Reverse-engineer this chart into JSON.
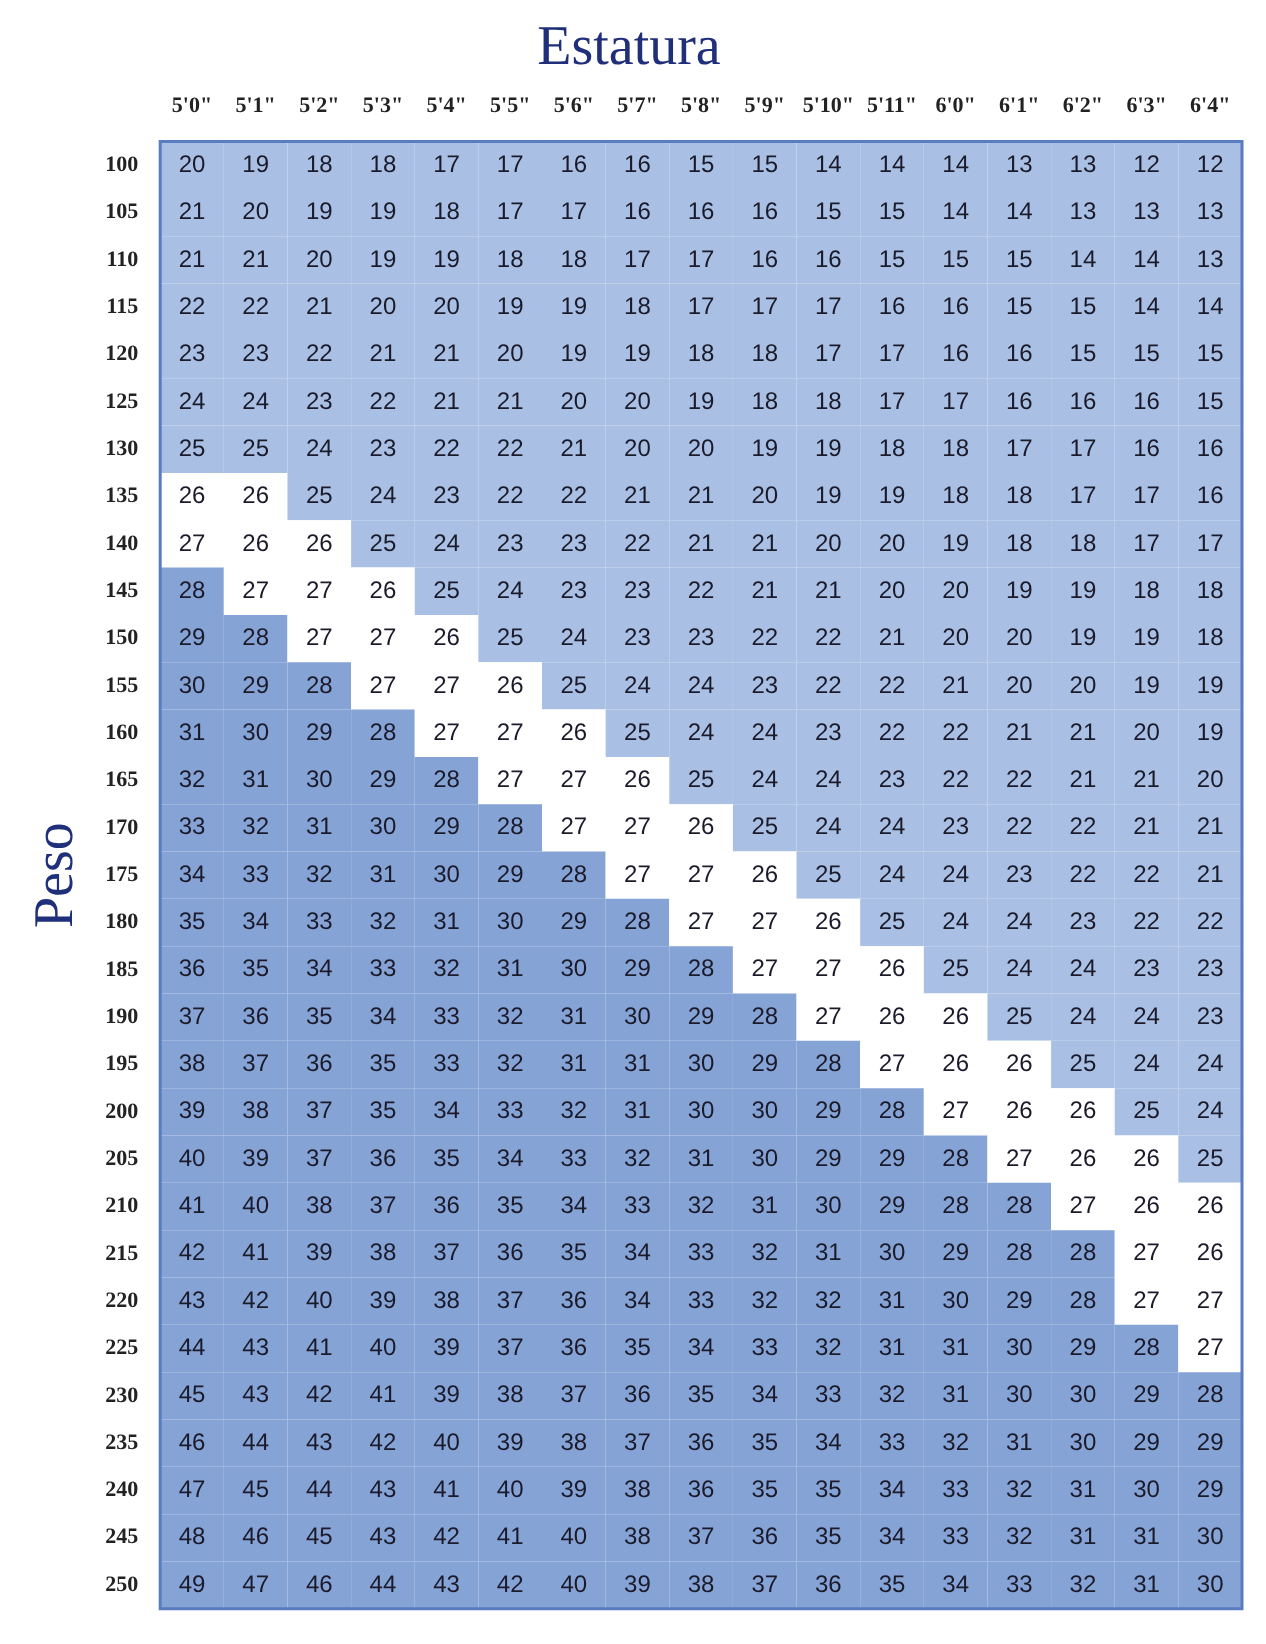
{
  "chart_data": {
    "type": "heatmap",
    "title": "Estatura",
    "ylabel": "Peso",
    "categories": [
      "5'0\"",
      "5'1\"",
      "5'2\"",
      "5'3\"",
      "5'4\"",
      "5'5\"",
      "5'6\"",
      "5'7\"",
      "5'8\"",
      "5'9\"",
      "5'10\"",
      "5'11\"",
      "6'0\"",
      "6'1\"",
      "6'2\"",
      "6'3\"",
      "6'4\""
    ],
    "y_categories": [
      "100",
      "105",
      "110",
      "115",
      "120",
      "125",
      "130",
      "135",
      "140",
      "145",
      "150",
      "155",
      "160",
      "165",
      "170",
      "175",
      "180",
      "185",
      "190",
      "195",
      "200",
      "205",
      "210",
      "215",
      "220",
      "225",
      "230",
      "235",
      "240",
      "245",
      "250"
    ],
    "cells": [
      [
        20,
        19,
        18,
        18,
        17,
        17,
        16,
        16,
        15,
        15,
        14,
        14,
        14,
        13,
        13,
        12,
        12
      ],
      [
        21,
        20,
        19,
        19,
        18,
        17,
        17,
        16,
        16,
        16,
        15,
        15,
        14,
        14,
        13,
        13,
        13
      ],
      [
        21,
        21,
        20,
        19,
        19,
        18,
        18,
        17,
        17,
        16,
        16,
        15,
        15,
        15,
        14,
        14,
        13
      ],
      [
        22,
        22,
        21,
        20,
        20,
        19,
        19,
        18,
        17,
        17,
        17,
        16,
        16,
        15,
        15,
        14,
        14
      ],
      [
        23,
        23,
        22,
        21,
        21,
        20,
        19,
        19,
        18,
        18,
        17,
        17,
        16,
        16,
        15,
        15,
        15
      ],
      [
        24,
        24,
        23,
        22,
        21,
        21,
        20,
        20,
        19,
        18,
        18,
        17,
        17,
        16,
        16,
        16,
        15
      ],
      [
        25,
        25,
        24,
        23,
        22,
        22,
        21,
        20,
        20,
        19,
        19,
        18,
        18,
        17,
        17,
        16,
        16
      ],
      [
        26,
        26,
        25,
        24,
        23,
        22,
        22,
        21,
        21,
        20,
        19,
        19,
        18,
        18,
        17,
        17,
        16
      ],
      [
        27,
        26,
        26,
        25,
        24,
        23,
        23,
        22,
        21,
        21,
        20,
        20,
        19,
        18,
        18,
        17,
        17
      ],
      [
        28,
        27,
        27,
        26,
        25,
        24,
        23,
        23,
        22,
        21,
        21,
        20,
        20,
        19,
        19,
        18,
        18
      ],
      [
        29,
        28,
        27,
        27,
        26,
        25,
        24,
        23,
        23,
        22,
        22,
        21,
        20,
        20,
        19,
        19,
        18
      ],
      [
        30,
        29,
        28,
        27,
        27,
        26,
        25,
        24,
        24,
        23,
        22,
        22,
        21,
        20,
        20,
        19,
        19
      ],
      [
        31,
        30,
        29,
        28,
        27,
        27,
        26,
        25,
        24,
        24,
        23,
        22,
        22,
        21,
        21,
        20,
        19
      ],
      [
        32,
        31,
        30,
        29,
        28,
        27,
        27,
        26,
        25,
        24,
        24,
        23,
        22,
        22,
        21,
        21,
        20
      ],
      [
        33,
        32,
        31,
        30,
        29,
        28,
        27,
        27,
        26,
        25,
        24,
        24,
        23,
        22,
        22,
        21,
        21
      ],
      [
        34,
        33,
        32,
        31,
        30,
        29,
        28,
        27,
        27,
        26,
        25,
        24,
        24,
        23,
        22,
        22,
        21
      ],
      [
        35,
        34,
        33,
        32,
        31,
        30,
        29,
        28,
        27,
        27,
        26,
        25,
        24,
        24,
        23,
        22,
        22
      ],
      [
        36,
        35,
        34,
        33,
        32,
        31,
        30,
        29,
        28,
        27,
        27,
        26,
        25,
        24,
        24,
        23,
        23
      ],
      [
        37,
        36,
        35,
        34,
        33,
        32,
        31,
        30,
        29,
        28,
        27,
        26,
        26,
        25,
        24,
        24,
        23
      ],
      [
        38,
        37,
        36,
        35,
        33,
        32,
        31,
        31,
        30,
        29,
        28,
        27,
        26,
        26,
        25,
        24,
        24
      ],
      [
        39,
        38,
        37,
        35,
        34,
        33,
        32,
        31,
        30,
        30,
        29,
        28,
        27,
        26,
        26,
        25,
        24
      ],
      [
        40,
        39,
        37,
        36,
        35,
        34,
        33,
        32,
        31,
        30,
        29,
        29,
        28,
        27,
        26,
        26,
        25
      ],
      [
        41,
        40,
        38,
        37,
        36,
        35,
        34,
        33,
        32,
        31,
        30,
        29,
        28,
        28,
        27,
        26,
        26
      ],
      [
        42,
        41,
        39,
        38,
        37,
        36,
        35,
        34,
        33,
        32,
        31,
        30,
        29,
        28,
        28,
        27,
        26
      ],
      [
        43,
        42,
        40,
        39,
        38,
        37,
        36,
        34,
        33,
        32,
        32,
        31,
        30,
        29,
        28,
        27,
        27
      ],
      [
        44,
        43,
        41,
        40,
        39,
        37,
        36,
        35,
        34,
        33,
        32,
        31,
        31,
        30,
        29,
        28,
        27
      ],
      [
        45,
        43,
        42,
        41,
        39,
        38,
        37,
        36,
        35,
        34,
        33,
        32,
        31,
        30,
        30,
        29,
        28
      ],
      [
        46,
        44,
        43,
        42,
        40,
        39,
        38,
        37,
        36,
        35,
        34,
        33,
        32,
        31,
        30,
        29,
        29
      ],
      [
        47,
        45,
        44,
        43,
        41,
        40,
        39,
        38,
        36,
        35,
        35,
        34,
        33,
        32,
        31,
        30,
        29
      ],
      [
        48,
        46,
        45,
        43,
        42,
        41,
        40,
        38,
        37,
        36,
        35,
        34,
        33,
        32,
        31,
        31,
        30
      ],
      [
        49,
        47,
        46,
        44,
        43,
        42,
        40,
        39,
        38,
        37,
        36,
        35,
        34,
        33,
        32,
        31,
        30
      ]
    ],
    "data_labels": true,
    "colors": [
      [
        "#a9c0e4",
        "#a9c0e4",
        "#a9c0e4",
        "#a9c0e4",
        "#a9c0e4",
        "#a9c0e4",
        "#a9c0e4",
        "#a9c0e4",
        "#a9c0e4",
        "#a9c0e4",
        "#a9c0e4",
        "#a9c0e4",
        "#a9c0e4",
        "#a9c0e4",
        "#a9c0e4",
        "#a9c0e4",
        "#a9c0e4"
      ],
      [
        "#a9c0e4",
        "#a9c0e4",
        "#a9c0e4",
        "#a9c0e4",
        "#a9c0e4",
        "#a9c0e4",
        "#a9c0e4",
        "#a9c0e4",
        "#a9c0e4",
        "#a9c0e4",
        "#a9c0e4",
        "#a9c0e4",
        "#a9c0e4",
        "#a9c0e4",
        "#a9c0e4",
        "#a9c0e4",
        "#a9c0e4"
      ],
      [
        "#a9c0e4",
        "#a9c0e4",
        "#a9c0e4",
        "#a9c0e4",
        "#a9c0e4",
        "#a9c0e4",
        "#a9c0e4",
        "#a9c0e4",
        "#a9c0e4",
        "#a9c0e4",
        "#a9c0e4",
        "#a9c0e4",
        "#a9c0e4",
        "#a9c0e4",
        "#a9c0e4",
        "#a9c0e4",
        "#a9c0e4"
      ],
      [
        "#a9c0e4",
        "#a9c0e4",
        "#a9c0e4",
        "#a9c0e4",
        "#a9c0e4",
        "#a9c0e4",
        "#a9c0e4",
        "#a9c0e4",
        "#a9c0e4",
        "#a9c0e4",
        "#a9c0e4",
        "#a9c0e4",
        "#a9c0e4",
        "#a9c0e4",
        "#a9c0e4",
        "#a9c0e4",
        "#a9c0e4"
      ],
      [
        "#a9c0e4",
        "#a9c0e4",
        "#a9c0e4",
        "#a9c0e4",
        "#a9c0e4",
        "#a9c0e4",
        "#a9c0e4",
        "#a9c0e4",
        "#a9c0e4",
        "#a9c0e4",
        "#a9c0e4",
        "#a9c0e4",
        "#a9c0e4",
        "#a9c0e4",
        "#a9c0e4",
        "#a9c0e4",
        "#a9c0e4"
      ],
      [
        "#a9c0e4",
        "#a9c0e4",
        "#a9c0e4",
        "#a9c0e4",
        "#a9c0e4",
        "#a9c0e4",
        "#a9c0e4",
        "#a9c0e4",
        "#a9c0e4",
        "#a9c0e4",
        "#a9c0e4",
        "#a9c0e4",
        "#a9c0e4",
        "#a9c0e4",
        "#a9c0e4",
        "#a9c0e4",
        "#a9c0e4"
      ],
      [
        "#a9c0e4",
        "#a9c0e4",
        "#a9c0e4",
        "#a9c0e4",
        "#a9c0e4",
        "#a9c0e4",
        "#a9c0e4",
        "#a9c0e4",
        "#a9c0e4",
        "#a9c0e4",
        "#a9c0e4",
        "#a9c0e4",
        "#a9c0e4",
        "#a9c0e4",
        "#a9c0e4",
        "#a9c0e4",
        "#a9c0e4"
      ],
      [
        "#ffffff",
        "#ffffff",
        "#a9c0e4",
        "#a9c0e4",
        "#a9c0e4",
        "#a9c0e4",
        "#a9c0e4",
        "#a9c0e4",
        "#a9c0e4",
        "#a9c0e4",
        "#a9c0e4",
        "#a9c0e4",
        "#a9c0e4",
        "#a9c0e4",
        "#a9c0e4",
        "#a9c0e4",
        "#a9c0e4"
      ],
      [
        "#ffffff",
        "#ffffff",
        "#ffffff",
        "#a9c0e4",
        "#a9c0e4",
        "#a9c0e4",
        "#a9c0e4",
        "#a9c0e4",
        "#a9c0e4",
        "#a9c0e4",
        "#a9c0e4",
        "#a9c0e4",
        "#a9c0e4",
        "#a9c0e4",
        "#a9c0e4",
        "#a9c0e4",
        "#a9c0e4"
      ],
      [
        "#86a3d6",
        "#ffffff",
        "#ffffff",
        "#ffffff",
        "#a9c0e4",
        "#a9c0e4",
        "#a9c0e4",
        "#a9c0e4",
        "#a9c0e4",
        "#a9c0e4",
        "#a9c0e4",
        "#a9c0e4",
        "#a9c0e4",
        "#a9c0e4",
        "#a9c0e4",
        "#a9c0e4",
        "#a9c0e4"
      ],
      [
        "#86a3d6",
        "#86a3d6",
        "#ffffff",
        "#ffffff",
        "#ffffff",
        "#a9c0e4",
        "#a9c0e4",
        "#a9c0e4",
        "#a9c0e4",
        "#a9c0e4",
        "#a9c0e4",
        "#a9c0e4",
        "#a9c0e4",
        "#a9c0e4",
        "#a9c0e4",
        "#a9c0e4",
        "#a9c0e4"
      ],
      [
        "#86a3d6",
        "#86a3d6",
        "#86a3d6",
        "#ffffff",
        "#ffffff",
        "#ffffff",
        "#a9c0e4",
        "#a9c0e4",
        "#a9c0e4",
        "#a9c0e4",
        "#a9c0e4",
        "#a9c0e4",
        "#a9c0e4",
        "#a9c0e4",
        "#a9c0e4",
        "#a9c0e4",
        "#a9c0e4"
      ],
      [
        "#86a3d6",
        "#86a3d6",
        "#86a3d6",
        "#86a3d6",
        "#ffffff",
        "#ffffff",
        "#ffffff",
        "#a9c0e4",
        "#a9c0e4",
        "#a9c0e4",
        "#a9c0e4",
        "#a9c0e4",
        "#a9c0e4",
        "#a9c0e4",
        "#a9c0e4",
        "#a9c0e4",
        "#a9c0e4"
      ],
      [
        "#86a3d6",
        "#86a3d6",
        "#86a3d6",
        "#86a3d6",
        "#86a3d6",
        "#ffffff",
        "#ffffff",
        "#ffffff",
        "#a9c0e4",
        "#a9c0e4",
        "#a9c0e4",
        "#a9c0e4",
        "#a9c0e4",
        "#a9c0e4",
        "#a9c0e4",
        "#a9c0e4",
        "#a9c0e4"
      ],
      [
        "#86a3d6",
        "#86a3d6",
        "#86a3d6",
        "#86a3d6",
        "#86a3d6",
        "#86a3d6",
        "#ffffff",
        "#ffffff",
        "#ffffff",
        "#a9c0e4",
        "#a9c0e4",
        "#a9c0e4",
        "#a9c0e4",
        "#a9c0e4",
        "#a9c0e4",
        "#a9c0e4",
        "#a9c0e4"
      ],
      [
        "#86a3d6",
        "#86a3d6",
        "#86a3d6",
        "#86a3d6",
        "#86a3d6",
        "#86a3d6",
        "#86a3d6",
        "#ffffff",
        "#ffffff",
        "#ffffff",
        "#a9c0e4",
        "#a9c0e4",
        "#a9c0e4",
        "#a9c0e4",
        "#a9c0e4",
        "#a9c0e4",
        "#a9c0e4"
      ],
      [
        "#86a3d6",
        "#86a3d6",
        "#86a3d6",
        "#86a3d6",
        "#86a3d6",
        "#86a3d6",
        "#86a3d6",
        "#86a3d6",
        "#ffffff",
        "#ffffff",
        "#ffffff",
        "#a9c0e4",
        "#a9c0e4",
        "#a9c0e4",
        "#a9c0e4",
        "#a9c0e4",
        "#a9c0e4"
      ],
      [
        "#86a3d6",
        "#86a3d6",
        "#86a3d6",
        "#86a3d6",
        "#86a3d6",
        "#86a3d6",
        "#86a3d6",
        "#86a3d6",
        "#86a3d6",
        "#ffffff",
        "#ffffff",
        "#ffffff",
        "#a9c0e4",
        "#a9c0e4",
        "#a9c0e4",
        "#a9c0e4",
        "#a9c0e4"
      ],
      [
        "#86a3d6",
        "#86a3d6",
        "#86a3d6",
        "#86a3d6",
        "#86a3d6",
        "#86a3d6",
        "#86a3d6",
        "#86a3d6",
        "#86a3d6",
        "#86a3d6",
        "#ffffff",
        "#ffffff",
        "#ffffff",
        "#a9c0e4",
        "#a9c0e4",
        "#a9c0e4",
        "#a9c0e4"
      ],
      [
        "#86a3d6",
        "#86a3d6",
        "#86a3d6",
        "#86a3d6",
        "#86a3d6",
        "#86a3d6",
        "#86a3d6",
        "#86a3d6",
        "#86a3d6",
        "#86a3d6",
        "#86a3d6",
        "#ffffff",
        "#ffffff",
        "#ffffff",
        "#a9c0e4",
        "#a9c0e4",
        "#a9c0e4"
      ],
      [
        "#86a3d6",
        "#86a3d6",
        "#86a3d6",
        "#86a3d6",
        "#86a3d6",
        "#86a3d6",
        "#86a3d6",
        "#86a3d6",
        "#86a3d6",
        "#86a3d6",
        "#86a3d6",
        "#86a3d6",
        "#ffffff",
        "#ffffff",
        "#ffffff",
        "#a9c0e4",
        "#a9c0e4"
      ],
      [
        "#86a3d6",
        "#86a3d6",
        "#86a3d6",
        "#86a3d6",
        "#86a3d6",
        "#86a3d6",
        "#86a3d6",
        "#86a3d6",
        "#86a3d6",
        "#86a3d6",
        "#86a3d6",
        "#86a3d6",
        "#86a3d6",
        "#ffffff",
        "#ffffff",
        "#ffffff",
        "#a9c0e4"
      ],
      [
        "#86a3d6",
        "#86a3d6",
        "#86a3d6",
        "#86a3d6",
        "#86a3d6",
        "#86a3d6",
        "#86a3d6",
        "#86a3d6",
        "#86a3d6",
        "#86a3d6",
        "#86a3d6",
        "#86a3d6",
        "#86a3d6",
        "#86a3d6",
        "#ffffff",
        "#ffffff",
        "#ffffff"
      ],
      [
        "#86a3d6",
        "#86a3d6",
        "#86a3d6",
        "#86a3d6",
        "#86a3d6",
        "#86a3d6",
        "#86a3d6",
        "#86a3d6",
        "#86a3d6",
        "#86a3d6",
        "#86a3d6",
        "#86a3d6",
        "#86a3d6",
        "#86a3d6",
        "#86a3d6",
        "#ffffff",
        "#ffffff"
      ],
      [
        "#86a3d6",
        "#86a3d6",
        "#86a3d6",
        "#86a3d6",
        "#86a3d6",
        "#86a3d6",
        "#86a3d6",
        "#86a3d6",
        "#86a3d6",
        "#86a3d6",
        "#86a3d6",
        "#86a3d6",
        "#86a3d6",
        "#86a3d6",
        "#86a3d6",
        "#ffffff",
        "#ffffff"
      ],
      [
        "#86a3d6",
        "#86a3d6",
        "#86a3d6",
        "#86a3d6",
        "#86a3d6",
        "#86a3d6",
        "#86a3d6",
        "#86a3d6",
        "#86a3d6",
        "#86a3d6",
        "#86a3d6",
        "#86a3d6",
        "#86a3d6",
        "#86a3d6",
        "#86a3d6",
        "#86a3d6",
        "#ffffff"
      ],
      [
        "#86a3d6",
        "#86a3d6",
        "#86a3d6",
        "#86a3d6",
        "#86a3d6",
        "#86a3d6",
        "#86a3d6",
        "#86a3d6",
        "#86a3d6",
        "#86a3d6",
        "#86a3d6",
        "#86a3d6",
        "#86a3d6",
        "#86a3d6",
        "#86a3d6",
        "#86a3d6",
        "#86a3d6"
      ],
      [
        "#86a3d6",
        "#86a3d6",
        "#86a3d6",
        "#86a3d6",
        "#86a3d6",
        "#86a3d6",
        "#86a3d6",
        "#86a3d6",
        "#86a3d6",
        "#86a3d6",
        "#86a3d6",
        "#86a3d6",
        "#86a3d6",
        "#86a3d6",
        "#86a3d6",
        "#86a3d6",
        "#86a3d6"
      ],
      [
        "#86a3d6",
        "#86a3d6",
        "#86a3d6",
        "#86a3d6",
        "#86a3d6",
        "#86a3d6",
        "#86a3d6",
        "#86a3d6",
        "#86a3d6",
        "#86a3d6",
        "#86a3d6",
        "#86a3d6",
        "#86a3d6",
        "#86a3d6",
        "#86a3d6",
        "#86a3d6",
        "#86a3d6"
      ],
      [
        "#86a3d6",
        "#86a3d6",
        "#86a3d6",
        "#86a3d6",
        "#86a3d6",
        "#86a3d6",
        "#86a3d6",
        "#86a3d6",
        "#86a3d6",
        "#86a3d6",
        "#86a3d6",
        "#86a3d6",
        "#86a3d6",
        "#86a3d6",
        "#86a3d6",
        "#86a3d6",
        "#86a3d6"
      ],
      [
        "#86a3d6",
        "#86a3d6",
        "#86a3d6",
        "#86a3d6",
        "#86a3d6",
        "#86a3d6",
        "#86a3d6",
        "#86a3d6",
        "#86a3d6",
        "#86a3d6",
        "#86a3d6",
        "#86a3d6",
        "#86a3d6",
        "#86a3d6",
        "#86a3d6",
        "#86a3d6",
        "#86a3d6"
      ]
    ]
  }
}
